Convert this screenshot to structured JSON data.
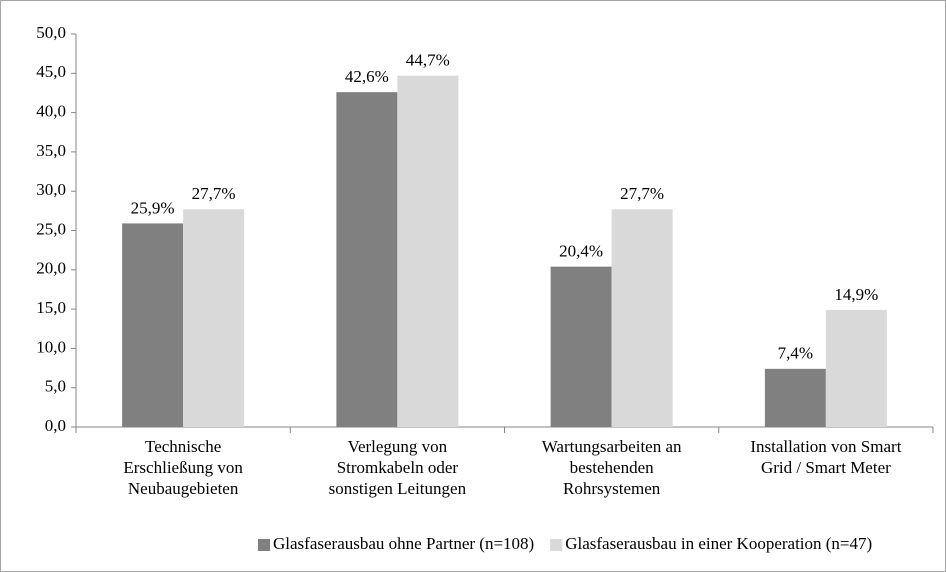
{
  "chart_data": {
    "type": "bar",
    "categories": [
      "Technische\nErschließung von\nNeubaugebieten",
      "Verlegung von\nStromkabeln oder\nsonstigen Leitungen",
      "Wartungsarbeiten an\nbestehenden\nRohrsystemen",
      "Installation von Smart\nGrid / Smart Meter"
    ],
    "series": [
      {
        "name": "Glasfaserausbau ohne Partner (n=108)",
        "color": "#808080",
        "values": [
          25.9,
          42.6,
          20.4,
          7.4
        ],
        "value_labels": [
          "25,9%",
          "42,6%",
          "20,4%",
          "7,4%"
        ]
      },
      {
        "name": "Glasfaserausbau in einer Kooperation (n=47)",
        "color": "#d9d9d9",
        "values": [
          27.7,
          44.7,
          27.7,
          14.9
        ],
        "value_labels": [
          "27,7%",
          "44,7%",
          "27,7%",
          "14,9%"
        ]
      }
    ],
    "ylim": [
      0,
      50
    ],
    "yticks": [
      {
        "value": 0,
        "label": "0,0"
      },
      {
        "value": 5,
        "label": "5,0"
      },
      {
        "value": 10,
        "label": "10,0"
      },
      {
        "value": 15,
        "label": "15,0"
      },
      {
        "value": 20,
        "label": "20,0"
      },
      {
        "value": 25,
        "label": "25,0"
      },
      {
        "value": 30,
        "label": "30,0"
      },
      {
        "value": 35,
        "label": "35,0"
      },
      {
        "value": 40,
        "label": "40,0"
      },
      {
        "value": 45,
        "label": "45,0"
      },
      {
        "value": 50,
        "label": "50,0"
      }
    ],
    "grid": false,
    "legend": "bottom"
  }
}
